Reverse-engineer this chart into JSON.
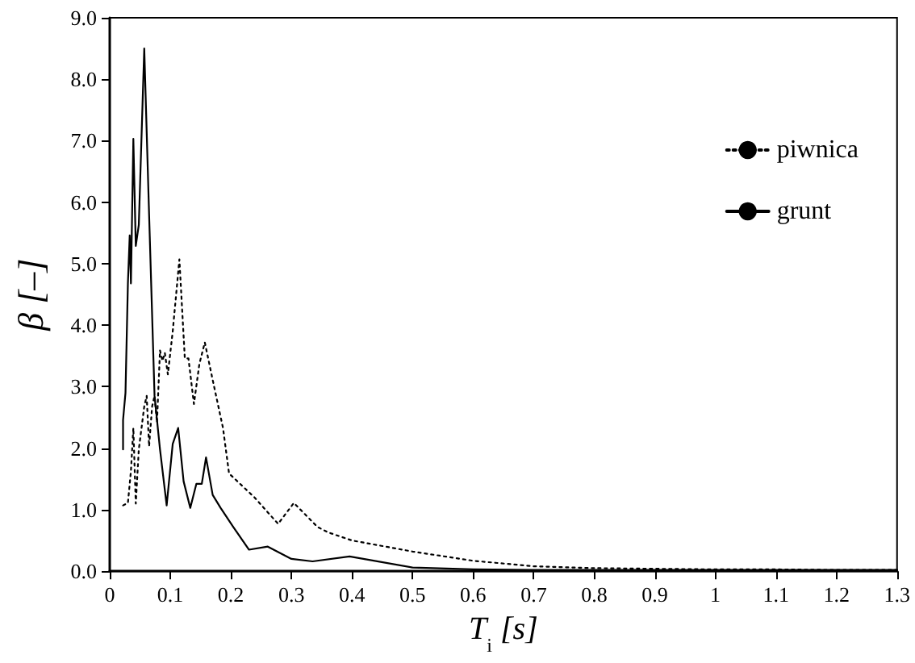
{
  "chart_data": {
    "type": "line",
    "xlabel": "T$_{i}$ [s]",
    "ylabel": "β [–]",
    "xlim": [
      0,
      1.3
    ],
    "xticks": [
      0,
      0.1,
      0.2,
      0.3,
      0.4,
      0.5,
      0.6,
      0.7,
      0.8,
      0.9,
      1,
      1.1,
      1.2,
      1.3
    ],
    "ylim": [
      0,
      9
    ],
    "yticks": [
      {
        "value": 0,
        "label": "0.0"
      },
      {
        "value": 1,
        "label": "1.0"
      },
      {
        "value": 2,
        "label": "2.0"
      },
      {
        "value": 3,
        "label": "3.0"
      },
      {
        "value": 4,
        "label": "4.0"
      },
      {
        "value": 5,
        "label": "5.0"
      },
      {
        "value": 6,
        "label": "6.0"
      },
      {
        "value": 7,
        "label": "7.0"
      },
      {
        "value": 8,
        "label": "8.0"
      },
      {
        "value": 9,
        "label": "9.0"
      }
    ],
    "grid": false,
    "legend": "top right",
    "marker": "none",
    "series": [
      {
        "name": "piwnica",
        "color": "#000000",
        "line_style": "dotted",
        "x": [
          0.022,
          0.03,
          0.035,
          0.039,
          0.043,
          0.048,
          0.057,
          0.061,
          0.065,
          0.07,
          0.074,
          0.078,
          0.083,
          0.087,
          0.091,
          0.096,
          0.104,
          0.115,
          0.124,
          0.13,
          0.139,
          0.148,
          0.157,
          0.17,
          0.187,
          0.197,
          0.239,
          0.278,
          0.304,
          0.343,
          0.361,
          0.4,
          0.5,
          0.6,
          0.7,
          0.8,
          0.9,
          1.0,
          1.1,
          1.2,
          1.3
        ],
        "values": [
          1.07,
          1.11,
          1.63,
          2.33,
          1.1,
          1.98,
          2.68,
          2.85,
          2.03,
          2.68,
          2.85,
          2.42,
          3.59,
          3.42,
          3.55,
          3.2,
          3.9,
          5.07,
          3.46,
          3.46,
          2.72,
          3.37,
          3.72,
          3.11,
          2.33,
          1.59,
          1.2,
          0.77,
          1.11,
          0.72,
          0.63,
          0.5,
          0.32,
          0.17,
          0.08,
          0.05,
          0.04,
          0.03,
          0.03,
          0.02,
          0.02
        ]
      },
      {
        "name": "grunt",
        "color": "#000000",
        "line_style": "solid",
        "x": [
          0.022,
          0.022,
          0.026,
          0.03,
          0.033,
          0.035,
          0.039,
          0.043,
          0.048,
          0.057,
          0.065,
          0.074,
          0.083,
          0.094,
          0.104,
          0.113,
          0.122,
          0.133,
          0.143,
          0.152,
          0.159,
          0.17,
          0.183,
          0.204,
          0.23,
          0.261,
          0.3,
          0.335,
          0.396,
          0.5,
          0.6,
          0.7,
          0.8,
          0.9,
          1.0,
          1.1,
          1.2,
          1.3
        ],
        "values": [
          1.98,
          2.46,
          2.9,
          4.68,
          5.46,
          4.68,
          7.03,
          5.29,
          5.63,
          8.5,
          5.8,
          2.85,
          1.98,
          1.07,
          2.07,
          2.33,
          1.46,
          1.03,
          1.42,
          1.42,
          1.85,
          1.24,
          1.03,
          0.72,
          0.35,
          0.4,
          0.2,
          0.16,
          0.24,
          0.06,
          0.03,
          0.02,
          0.02,
          0.02,
          0.02,
          0.02,
          0.02,
          0.02
        ]
      }
    ]
  }
}
